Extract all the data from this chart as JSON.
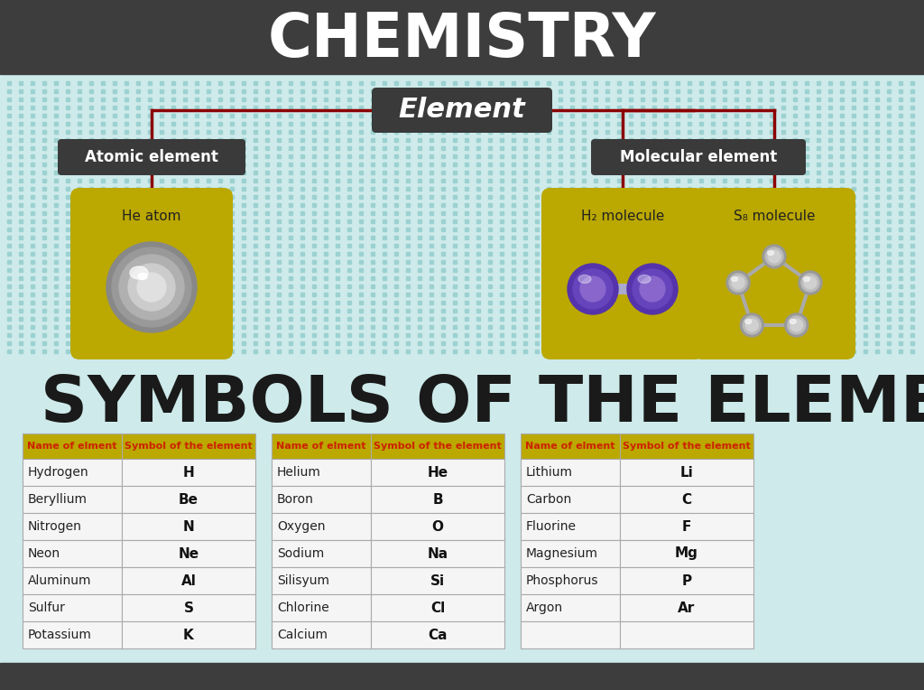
{
  "title": "CHEMISTRY",
  "title_bg": "#3d3d3d",
  "title_color": "#ffffff",
  "bg_color": "#ceeaea",
  "dot_color": "#99d0d0",
  "bottom_bg": "#3d3d3d",
  "element_label": "Element",
  "element_bg": "#3a3a3a",
  "element_color": "#ffffff",
  "atomic_label": "Atomic element",
  "molecular_label": "Molecular element",
  "sublabel_bg": "#3a3a3a",
  "sublabel_color": "#ffffff",
  "he_label": "He atom",
  "h2_label": "H₂ molecule",
  "s8_label": "S₈ molecule",
  "box_color": "#bba800",
  "line_color": "#8b0000",
  "symbols_title": "SYMBOLS OF THE ELEMENTS",
  "symbols_color": "#1a1a1a",
  "table_header_bg": "#bba800",
  "table_header_text": "#cc2200",
  "table_border": "#aaaaaa",
  "table_bg": "#f5f5f5",
  "col1_header": "Name of elment",
  "col2_header": "Symbol of the element",
  "table1": [
    [
      "Hydrogen",
      "H"
    ],
    [
      "Beryllium",
      "Be"
    ],
    [
      "Nitrogen",
      "N"
    ],
    [
      "Neon",
      "Ne"
    ],
    [
      "Aluminum",
      "Al"
    ],
    [
      "Sulfur",
      "S"
    ],
    [
      "Potassium",
      "K"
    ]
  ],
  "table2": [
    [
      "Helium",
      "He"
    ],
    [
      "Boron",
      "B"
    ],
    [
      "Oxygen",
      "O"
    ],
    [
      "Sodium",
      "Na"
    ],
    [
      "Silisyum",
      "Si"
    ],
    [
      "Chlorine",
      "Cl"
    ],
    [
      "Calcium",
      "Ca"
    ]
  ],
  "table3": [
    [
      "Lithium",
      "Li"
    ],
    [
      "Carbon",
      "C"
    ],
    [
      "Fluorine",
      "F"
    ],
    [
      "Magnesium",
      "Mg"
    ],
    [
      "Phosphorus",
      "P"
    ],
    [
      "Argon",
      "Ar"
    ],
    [
      "",
      ""
    ]
  ]
}
